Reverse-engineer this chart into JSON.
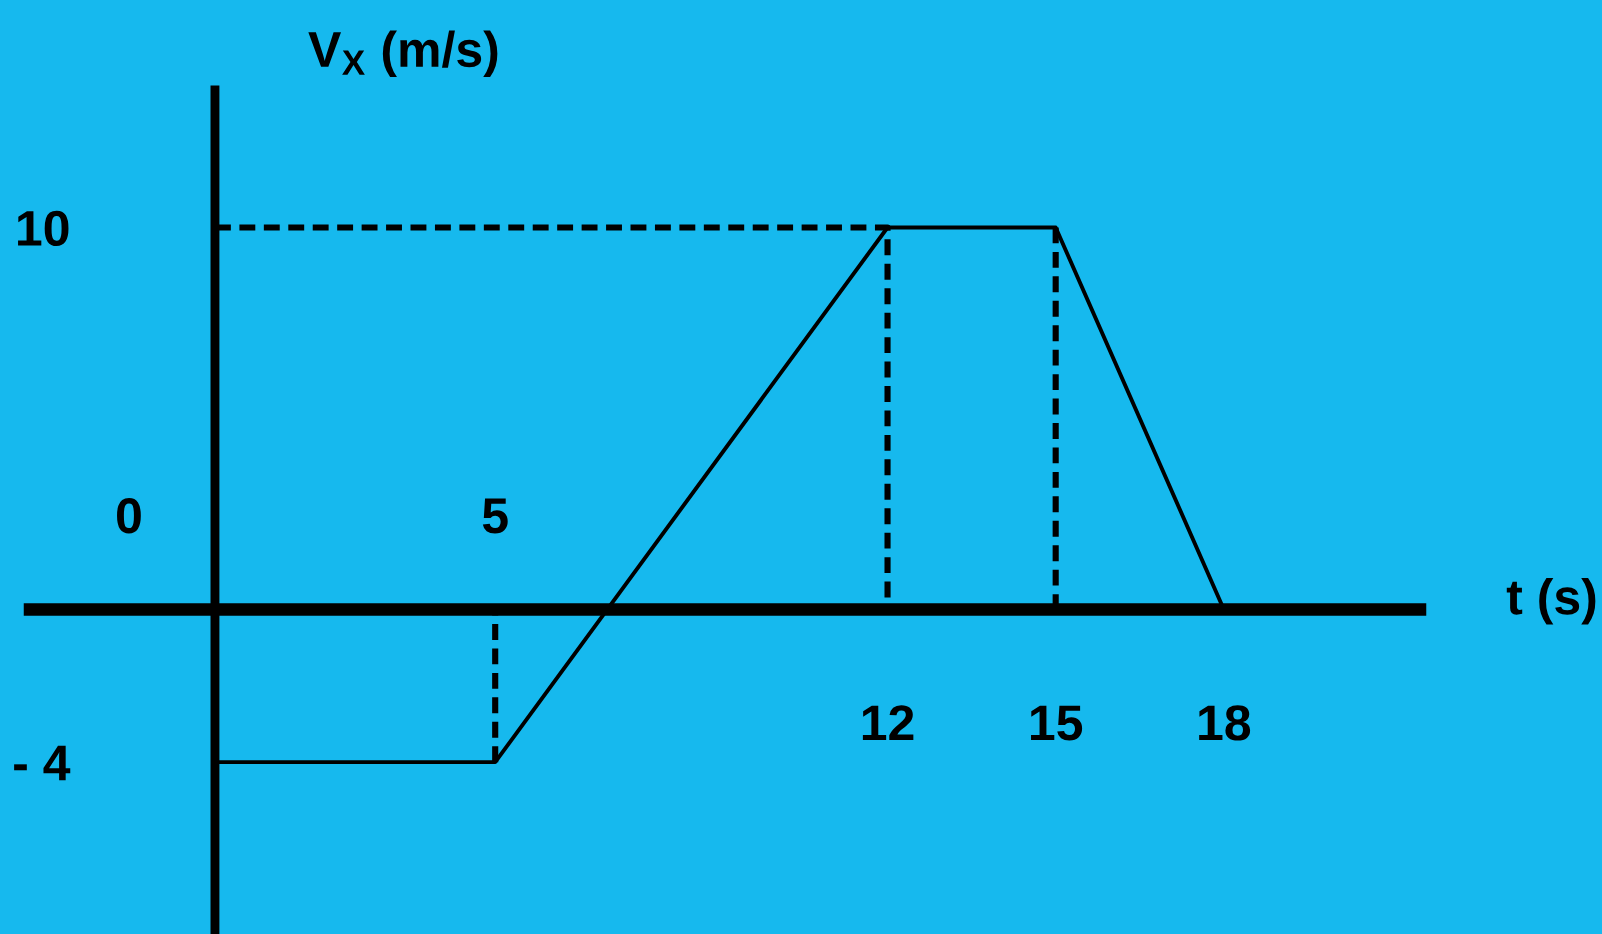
{
  "chart_data": {
    "type": "line",
    "xlabel": "t (s)",
    "ylabel": "V$_{X}$ (m/s)",
    "series": [
      {
        "color": "#000000",
        "x": [
          0,
          5,
          12,
          15,
          18
        ],
        "values": [
          -4,
          -4,
          10,
          10,
          0
        ]
      },
      {
        "color": "#000000",
        "x": [
          0,
          12,
          12
        ],
        "values": [
          10,
          10,
          0
        ],
        "line_style": "dashed"
      },
      {
        "color": "#000000",
        "x": [
          15,
          15
        ],
        "values": [
          10,
          0
        ],
        "line_style": "dashed"
      },
      {
        "color": "#000000",
        "x": [
          5,
          5
        ],
        "values": [
          -4,
          0
        ],
        "line_style": "dashed"
      }
    ],
    "annotations": [
      "0",
      {
        "text": "5",
        "x": 5,
        "y": 0
      }
    ],
    "xlim": [
      -3.3,
      21.5
    ],
    "ylim": [
      -8.5,
      13.6
    ],
    "xticks": [
      12,
      15,
      18
    ],
    "yticks": [
      10,
      {
        "value": -4,
        "label": "- 4"
      }
    ],
    "line_style": "solid"
  }
}
